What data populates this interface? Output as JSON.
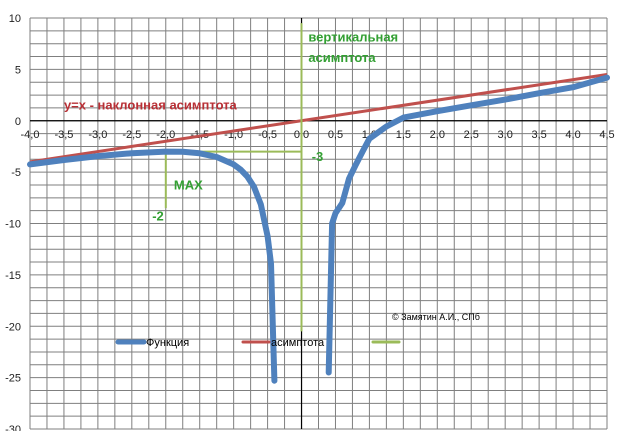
{
  "chart_data": {
    "type": "line",
    "xlim": [
      -4.0,
      4.5
    ],
    "ylim": [
      -30,
      10
    ],
    "x_ticks": [
      "-4,0",
      "-3,5",
      "-3,0",
      "-2,5",
      "-2,0",
      "-1,5",
      "-1,0",
      "-0,5",
      "0,0",
      "0,5",
      "1,0",
      "1,5",
      "2,0",
      "2,5",
      "3,0",
      "3,5",
      "4,0",
      "4,5"
    ],
    "y_ticks": [
      "10",
      "5",
      "0",
      "-5",
      "-10",
      "-15",
      "-20",
      "-25",
      "-30"
    ],
    "grid": true,
    "series": [
      {
        "name": "Функция",
        "color": "#4f81bd",
        "segments": [
          [
            [
              -4.0,
              -4.25
            ],
            [
              -3.5,
              -3.82
            ],
            [
              -3.0,
              -3.44
            ],
            [
              -2.5,
              -3.16
            ],
            [
              -2.0,
              -3.0
            ],
            [
              -1.75,
              -3.02
            ],
            [
              -1.5,
              -3.17
            ],
            [
              -1.25,
              -3.53
            ],
            [
              -1.0,
              -4.25
            ],
            [
              -0.9,
              -4.73
            ],
            [
              -0.8,
              -5.42
            ],
            [
              -0.7,
              -6.44
            ],
            [
              -0.6,
              -8.13
            ],
            [
              -0.5,
              -11.25
            ],
            [
              -0.45,
              -13.91
            ],
            [
              -0.4,
              -25.3
            ]
          ],
          [
            [
              0.4,
              -24.5
            ],
            [
              0.45,
              -10.0
            ],
            [
              0.5,
              -9.0
            ],
            [
              0.6,
              -8.0
            ],
            [
              0.7,
              -5.64
            ],
            [
              0.8,
              -4.28
            ],
            [
              0.9,
              -2.99
            ],
            [
              1.0,
              -1.75
            ],
            [
              1.25,
              -0.56
            ],
            [
              1.5,
              0.31
            ],
            [
              2.0,
              0.93
            ],
            [
              2.5,
              1.5
            ],
            [
              3.0,
              2.06
            ],
            [
              3.5,
              2.68
            ],
            [
              4.0,
              3.27
            ],
            [
              4.5,
              4.2
            ]
          ]
        ]
      },
      {
        "name": "асимптота",
        "color": "#c0504d",
        "points": [
          [
            -4.0,
            -4.0
          ],
          [
            4.5,
            4.5
          ]
        ]
      },
      {
        "name": "",
        "color": "#9bbb59",
        "lines": [
          [
            [
              0.0,
              9.5
            ],
            [
              0.0,
              -20.5
            ]
          ],
          [
            [
              -2.0,
              -3.0
            ],
            [
              0.0,
              -3.0
            ]
          ],
          [
            [
              -2.0,
              -3.0
            ],
            [
              -2.0,
              -8.5
            ]
          ]
        ]
      }
    ],
    "annotations": [
      {
        "text": "вертикальная",
        "x": 0.1,
        "y": 7.7,
        "color": "#33a033"
      },
      {
        "text": "асимптота",
        "x": 0.1,
        "y": 5.7,
        "color": "#33a033"
      },
      {
        "text": "y=x - наклонная асимптота",
        "x": -3.5,
        "y": 1.1,
        "color": "#b82f35"
      },
      {
        "text": "-3",
        "x": 0.15,
        "y": -3.9,
        "color": "#33a033"
      },
      {
        "text": "MAX",
        "x": -1.88,
        "y": -6.7,
        "color": "#33a033"
      },
      {
        "text": "-2",
        "x": -2.2,
        "y": -9.7,
        "color": "#33a033"
      }
    ],
    "copyright": "© Замятин А.И., СПб",
    "legend": "bottom"
  }
}
